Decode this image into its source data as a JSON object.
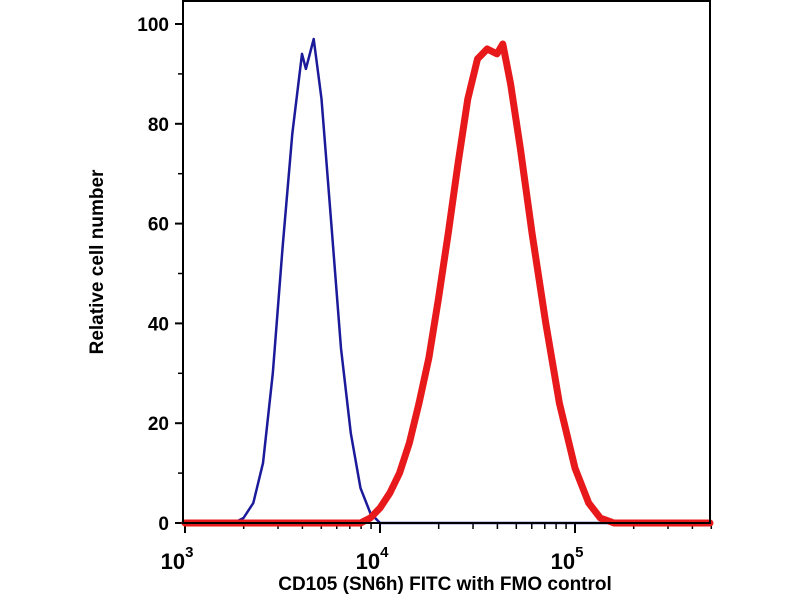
{
  "chart_data": {
    "type": "line",
    "title": "",
    "xlabel": "CD105 (SN6h) FITC with FMO control",
    "ylabel": "Relative cell number",
    "xscale": "log",
    "xlim_log10": [
      3.0,
      5.7
    ],
    "ylim": [
      0,
      100
    ],
    "yticks": [
      0,
      20,
      40,
      60,
      80,
      100
    ],
    "ytick_labels": [
      "0",
      "20",
      "40",
      "60",
      "80",
      "100"
    ],
    "xticks_log10": [
      3,
      4,
      5
    ],
    "xtick_labels": [
      {
        "base": "10",
        "exp": "3"
      },
      {
        "base": "10",
        "exp": "4"
      },
      {
        "base": "10",
        "exp": "5"
      }
    ],
    "grid": false,
    "legend": "none",
    "series": [
      {
        "name": "FMO control",
        "color": "#1a1a9a",
        "x_log10": [
          3.0,
          3.25,
          3.3,
          3.35,
          3.4,
          3.45,
          3.5,
          3.55,
          3.6,
          3.62,
          3.66,
          3.7,
          3.75,
          3.8,
          3.85,
          3.9,
          3.95,
          4.0,
          5.7
        ],
        "y": [
          0,
          0,
          1,
          4,
          12,
          30,
          55,
          78,
          94,
          91,
          97,
          85,
          60,
          35,
          18,
          7,
          2,
          0,
          0
        ]
      },
      {
        "name": "CD105 (SN6h) FITC",
        "color": "#e8191b",
        "x_log10": [
          3.0,
          3.9,
          3.95,
          4.0,
          4.05,
          4.1,
          4.15,
          4.2,
          4.25,
          4.3,
          4.35,
          4.4,
          4.45,
          4.5,
          4.55,
          4.6,
          4.63,
          4.67,
          4.72,
          4.78,
          4.85,
          4.92,
          5.0,
          5.07,
          5.13,
          5.2,
          5.7
        ],
        "y": [
          0,
          0,
          1,
          3,
          6,
          10,
          16,
          24,
          33,
          45,
          58,
          72,
          85,
          93,
          95,
          94,
          96,
          88,
          75,
          58,
          40,
          24,
          11,
          4,
          1,
          0,
          0
        ]
      }
    ]
  }
}
